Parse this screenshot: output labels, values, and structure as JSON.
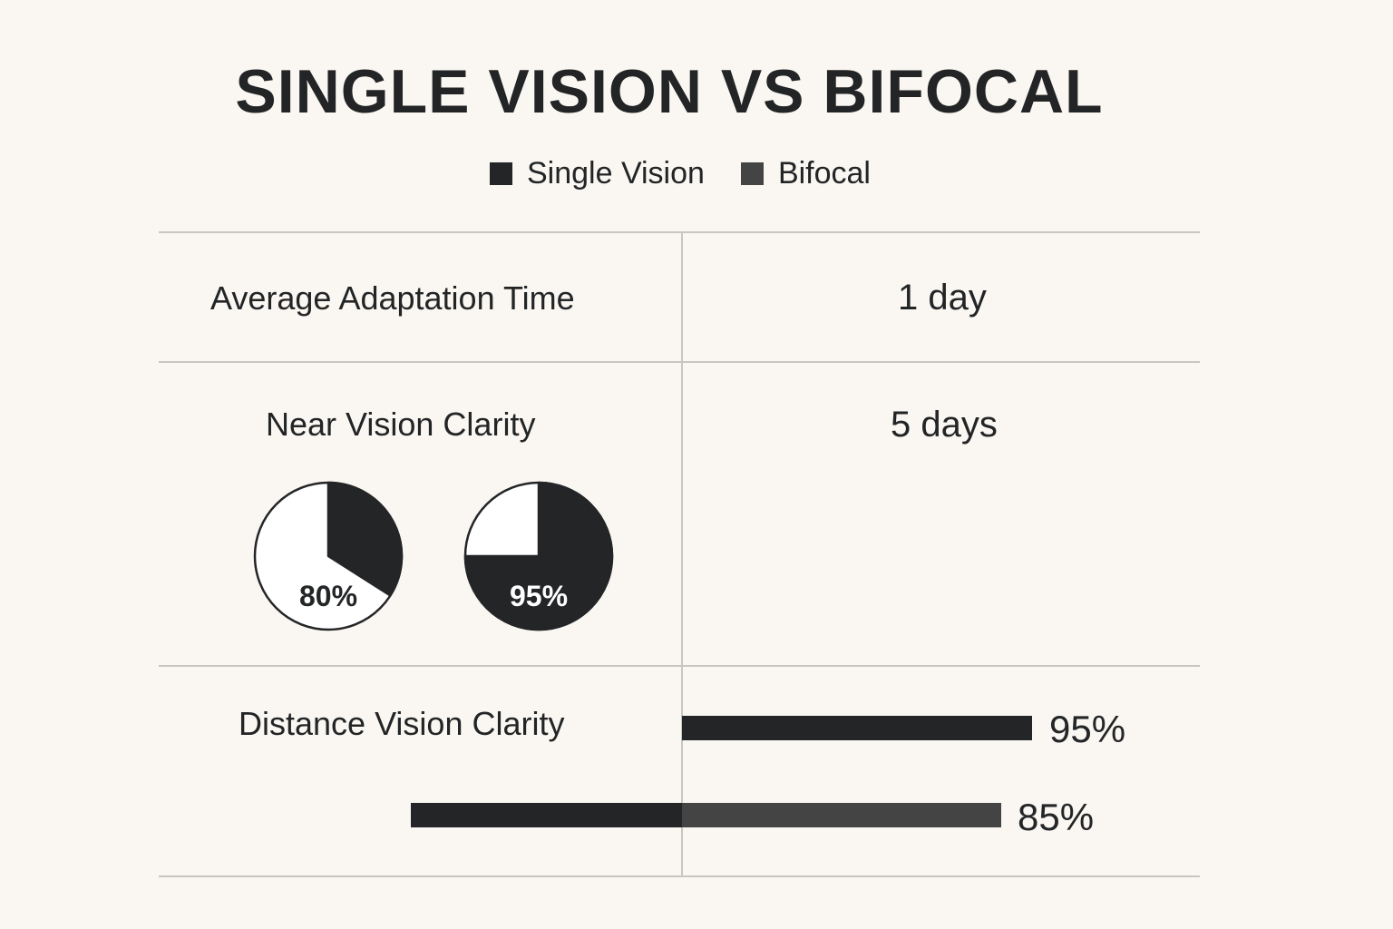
{
  "chart_data": {
    "type": "table",
    "title": "SINGLE VISION VS BIFOCAL",
    "legend": [
      {
        "name": "Single Vision",
        "color": "#232527"
      },
      {
        "name": "Bifocal",
        "color": "#444444"
      }
    ],
    "rows": [
      {
        "label": "Average Adaptation Time",
        "value": "1 day"
      },
      {
        "label": "Near Vision Clarity",
        "value": "5 days"
      },
      {
        "label": "Distance Vision Clarity",
        "value": ""
      }
    ],
    "near_vision_pies": [
      {
        "label": "80%",
        "value": 80,
        "filled_fraction": 0.34,
        "style": "outline"
      },
      {
        "label": "95%",
        "value": 95,
        "filled_fraction": 0.75,
        "style": "filled"
      }
    ],
    "distance_vision_bars": [
      {
        "label": "95%",
        "value": 95
      },
      {
        "label": "85%",
        "value": 85
      }
    ],
    "colors": {
      "dark": "#232527",
      "bifocal": "#444444",
      "background": "#faf7f2",
      "grid": "#c8c6c2"
    }
  }
}
